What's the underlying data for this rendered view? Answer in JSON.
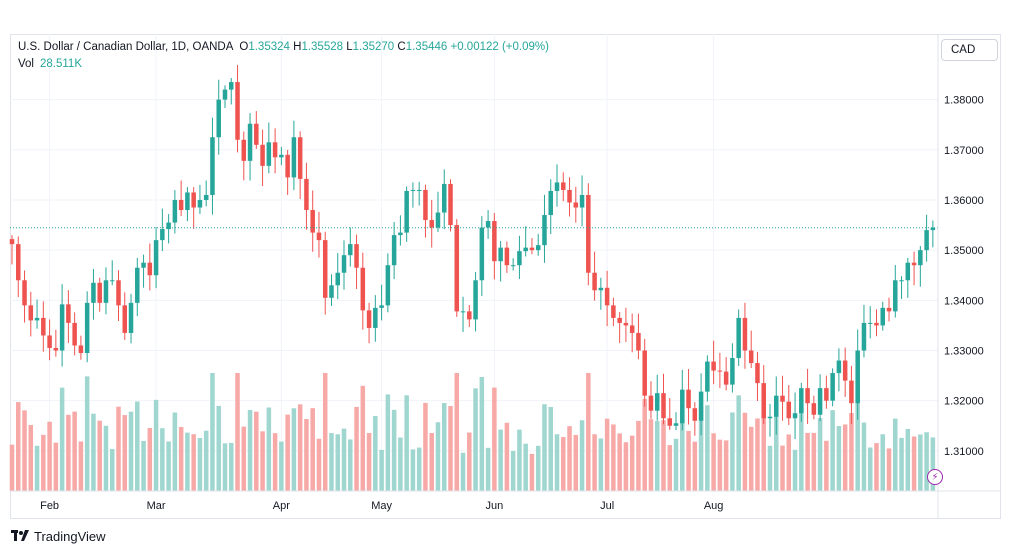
{
  "header": {
    "title": "U.S. Dollar / Canadian Dollar, 1D, OANDA",
    "open_label": "O",
    "open": "1.35324",
    "high_label": "H",
    "high": "1.35528",
    "low_label": "L",
    "low": "1.35270",
    "close_label": "C",
    "close": "1.35446",
    "change": "+0.00122 (+0.09%)",
    "vol_label": "Vol",
    "vol_value": "28.511K"
  },
  "currency_button": "CAD",
  "brand": "TradingView",
  "colors": {
    "up": "#26a69a",
    "down": "#ef5350",
    "vol_up": "#9fd6cf",
    "vol_down": "#f7a9a7",
    "price_line": "#26a69a"
  },
  "chart_data": {
    "type": "candlestick",
    "symbol": "USDCAD",
    "interval": "1D",
    "last_price": 1.35446,
    "ylim": [
      1.302,
      1.3875
    ],
    "y_ticks": [
      "1.31000",
      "1.32000",
      "1.33000",
      "1.34000",
      "1.35000",
      "1.36000",
      "1.37000",
      "1.38000"
    ],
    "x_ticks": [
      "Feb",
      "Mar",
      "Apr",
      "May",
      "Jun",
      "Jul",
      "Aug"
    ],
    "x_tick_index": [
      6,
      23,
      43,
      59,
      77,
      95,
      112
    ],
    "close": [
      1.3512,
      1.344,
      1.339,
      1.336,
      1.3365,
      1.333,
      1.3305,
      1.33,
      1.3392,
      1.3355,
      1.331,
      1.3295,
      1.3395,
      1.3435,
      1.3395,
      1.344,
      1.344,
      1.339,
      1.3335,
      1.3395,
      1.3465,
      1.3475,
      1.345,
      1.352,
      1.3542,
      1.3555,
      1.36,
      1.358,
      1.3615,
      1.3585,
      1.36,
      1.361,
      1.3725,
      1.38,
      1.382,
      1.3835,
      1.372,
      1.3678,
      1.3752,
      1.371,
      1.3668,
      1.3715,
      1.3685,
      1.369,
      1.3645,
      1.3725,
      1.3642,
      1.358,
      1.3535,
      1.352,
      1.3405,
      1.343,
      1.3455,
      1.349,
      1.3512,
      1.3465,
      1.338,
      1.3345,
      1.3385,
      1.339,
      1.347,
      1.353,
      1.3535,
      1.3618,
      1.362,
      1.362,
      1.356,
      1.3545,
      1.3575,
      1.3632,
      1.355,
      1.3378,
      1.3378,
      1.3362,
      1.344,
      1.3545,
      1.3558,
      1.3478,
      1.3505,
      1.347,
      1.347,
      1.3498,
      1.3505,
      1.35,
      1.351,
      1.357,
      1.3618,
      1.3635,
      1.362,
      1.3595,
      1.3585,
      1.361,
      1.3455,
      1.342,
      1.3425,
      1.339,
      1.3365,
      1.3355,
      1.335,
      1.3335,
      1.33,
      1.321,
      1.318,
      1.3215,
      1.3165,
      1.315,
      1.3155,
      1.3222,
      1.3185,
      1.316,
      1.3218,
      1.3278,
      1.326,
      1.3258,
      1.3232,
      1.3285,
      1.3365,
      1.33,
      1.3275,
      1.3235,
      1.3165,
      1.3168,
      1.321,
      1.3198,
      1.3165,
      1.3175,
      1.3225,
      1.3195,
      1.3172,
      1.3225,
      1.32,
      1.3255,
      1.328,
      1.324,
      1.3195,
      1.33,
      1.3355,
      1.3355,
      1.335,
      1.3385,
      1.3378,
      1.344,
      1.344,
      1.3475,
      1.347,
      1.35,
      1.354,
      1.3545
    ]
  }
}
